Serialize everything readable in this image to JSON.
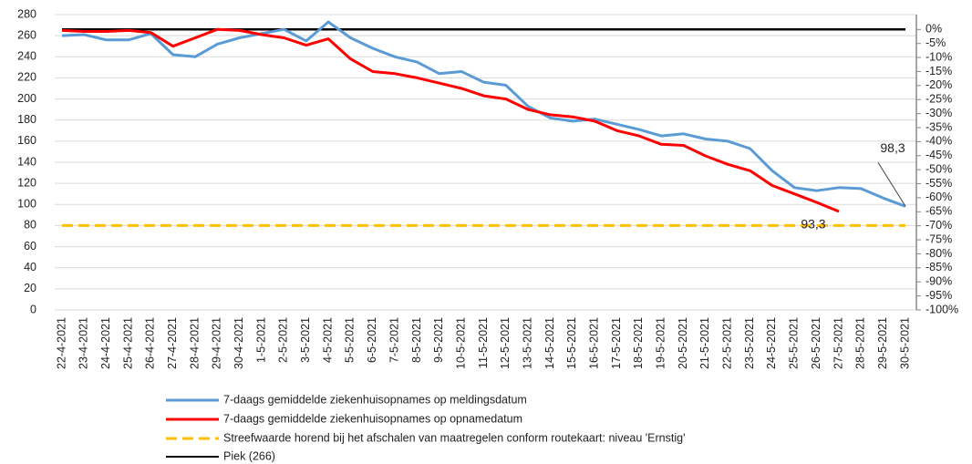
{
  "chart_data": {
    "type": "line",
    "categories": [
      "22-4-2021",
      "23-4-2021",
      "24-4-2021",
      "25-4-2021",
      "26-4-2021",
      "27-4-2021",
      "28-4-2021",
      "29-4-2021",
      "30-4-2021",
      "1-5-2021",
      "2-5-2021",
      "3-5-2021",
      "4-5-2021",
      "5-5-2021",
      "6-5-2021",
      "7-5-2021",
      "8-5-2021",
      "9-5-2021",
      "10-5-2021",
      "11-5-2021",
      "12-5-2021",
      "13-5-2021",
      "14-5-2021",
      "15-5-2021",
      "16-5-2021",
      "17-5-2021",
      "18-5-2021",
      "19-5-2021",
      "20-5-2021",
      "21-5-2021",
      "22-5-2021",
      "23-5-2021",
      "24-5-2021",
      "25-5-2021",
      "26-5-2021",
      "27-5-2021",
      "28-5-2021",
      "29-5-2021",
      "30-5-2021"
    ],
    "series": [
      {
        "name": "7-daags gemiddelde ziekenhuisopnames op meldingsdatum",
        "color": "#5b9bd5",
        "values": [
          260,
          261,
          256,
          256,
          262,
          242,
          240,
          252,
          258,
          262,
          266,
          255,
          273,
          258,
          248,
          240,
          235,
          224,
          226,
          216,
          213,
          193,
          182,
          179,
          181,
          176,
          171,
          165,
          167,
          162,
          160,
          153,
          132,
          116,
          113,
          116,
          115,
          106,
          98.3
        ],
        "value_labels": [
          null,
          null,
          null,
          null,
          null,
          null,
          null,
          null,
          null,
          null,
          null,
          null,
          null,
          null,
          null,
          null,
          null,
          null,
          null,
          null,
          null,
          null,
          null,
          null,
          null,
          null,
          null,
          null,
          null,
          null,
          null,
          null,
          null,
          null,
          null,
          null,
          null,
          null,
          "98,3"
        ]
      },
      {
        "name": "7-daags gemiddelde ziekenhuisopnames op opnamedatum",
        "color": "#ff0000",
        "values": [
          265,
          264,
          264,
          265,
          263,
          250,
          258,
          266,
          265,
          261,
          258,
          251,
          257,
          238,
          226,
          224,
          220,
          215,
          210,
          203,
          200,
          190,
          185,
          183,
          179,
          170,
          165,
          157,
          156,
          146,
          138,
          132,
          118,
          110,
          102,
          93.3,
          null,
          null,
          null
        ],
        "value_labels": [
          null,
          null,
          null,
          null,
          null,
          null,
          null,
          null,
          null,
          null,
          null,
          null,
          null,
          null,
          null,
          null,
          null,
          null,
          null,
          null,
          null,
          null,
          null,
          null,
          null,
          null,
          null,
          null,
          null,
          null,
          null,
          null,
          null,
          null,
          null,
          "93,3",
          null,
          null,
          null
        ]
      },
      {
        "name": "Streefwaarde horend bij het afschalen van maatregelen conform routekaart: niveau 'Ernstig'",
        "color": "#ffc000",
        "dashed": true,
        "values": [
          80,
          80,
          80,
          80,
          80,
          80,
          80,
          80,
          80,
          80,
          80,
          80,
          80,
          80,
          80,
          80,
          80,
          80,
          80,
          80,
          80,
          80,
          80,
          80,
          80,
          80,
          80,
          80,
          80,
          80,
          80,
          80,
          80,
          80,
          80,
          80,
          80,
          80,
          80
        ]
      },
      {
        "name": "Piek (266)",
        "color": "#000000",
        "values": [
          266,
          266,
          266,
          266,
          266,
          266,
          266,
          266,
          266,
          266,
          266,
          266,
          266,
          266,
          266,
          266,
          266,
          266,
          266,
          266,
          266,
          266,
          266,
          266,
          266,
          266,
          266,
          266,
          266,
          266,
          266,
          266,
          266,
          266,
          266,
          266,
          266,
          266,
          266
        ]
      }
    ],
    "ylim": [
      0,
      280
    ],
    "yticks": [
      0,
      20,
      40,
      60,
      80,
      100,
      120,
      140,
      160,
      180,
      200,
      220,
      240,
      260,
      280
    ],
    "y2lim": [
      -100,
      5.3
    ],
    "y2ticks": [
      {
        "value": 0,
        "label": "0%"
      },
      {
        "value": -5,
        "label": "-5%"
      },
      {
        "value": -10,
        "label": "-10%"
      },
      {
        "value": -15,
        "label": "-15%"
      },
      {
        "value": -20,
        "label": "-20%"
      },
      {
        "value": -25,
        "label": "-25%"
      },
      {
        "value": -30,
        "label": "-30%"
      },
      {
        "value": -35,
        "label": "-35%"
      },
      {
        "value": -40,
        "label": "-40%"
      },
      {
        "value": -45,
        "label": "-45%"
      },
      {
        "value": -50,
        "label": "-50%"
      },
      {
        "value": -55,
        "label": "-55%"
      },
      {
        "value": -60,
        "label": "-60%"
      },
      {
        "value": -65,
        "label": "-65%"
      },
      {
        "value": -70,
        "label": "-70%"
      },
      {
        "value": -75,
        "label": "-75%"
      },
      {
        "value": -80,
        "label": "-80%"
      },
      {
        "value": -85,
        "label": "-85%"
      },
      {
        "value": -90,
        "label": "-90%"
      },
      {
        "value": -95,
        "label": "-95%"
      },
      {
        "value": -100,
        "label": "-100%"
      }
    ],
    "grid": true
  }
}
